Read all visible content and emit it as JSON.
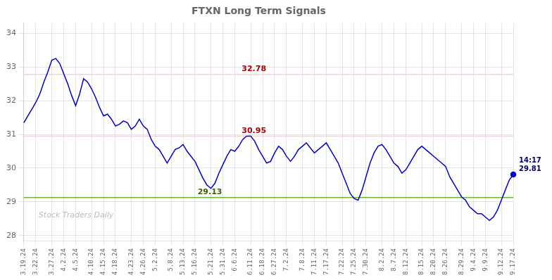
{
  "chart_data": {
    "type": "line",
    "title": "FTXN Long Term Signals",
    "color": "#0000cc",
    "grid": true,
    "ylim": [
      27.85,
      34.3
    ],
    "yticks": [
      28,
      29,
      30,
      31,
      32,
      33,
      34
    ],
    "categories": [
      "3.19.24",
      null,
      null,
      "3.22.24",
      null,
      null,
      null,
      "3.27.24",
      null,
      null,
      "4.2.24",
      null,
      null,
      "4.5.24",
      null,
      null,
      null,
      "4.10.24",
      null,
      null,
      "4.15.24",
      null,
      null,
      "4.18.24",
      null,
      null,
      null,
      "4.23.24",
      null,
      null,
      "4.26.24",
      null,
      null,
      "5.2.24",
      null,
      null,
      null,
      "5.8.24",
      null,
      null,
      "5.13.24",
      null,
      null,
      "5.16.24",
      null,
      null,
      null,
      "5.21.24",
      null,
      null,
      "5.31.24",
      null,
      null,
      "6.6.24",
      null,
      null,
      null,
      "6.11.24",
      null,
      null,
      "6.18.24",
      null,
      null,
      "6.27.24",
      null,
      null,
      "7.2.24",
      null,
      null,
      null,
      "7.8.24",
      null,
      null,
      "7.11.24",
      null,
      null,
      "7.17.24",
      null,
      null,
      null,
      "7.22.24",
      null,
      null,
      "7.25.24",
      null,
      null,
      "7.30.24",
      null,
      null,
      null,
      "8.2.24",
      null,
      null,
      "8.7.24",
      null,
      null,
      "8.12.24",
      null,
      null,
      null,
      "8.15.24",
      null,
      null,
      "8.20.24",
      null,
      null,
      "8.26.24",
      null,
      null,
      null,
      "8.29.24",
      null,
      null,
      "9.4.24",
      null,
      null,
      "9.9.24",
      null,
      null,
      null,
      "9.12.24",
      null,
      null,
      "9.17.24"
    ],
    "values": [
      31.35,
      31.55,
      31.75,
      31.95,
      32.2,
      32.55,
      32.85,
      33.2,
      33.25,
      33.1,
      32.8,
      32.5,
      32.15,
      31.85,
      32.2,
      32.65,
      32.55,
      32.35,
      32.1,
      31.8,
      31.55,
      31.6,
      31.45,
      31.25,
      31.3,
      31.4,
      31.35,
      31.15,
      31.25,
      31.45,
      31.25,
      31.15,
      30.85,
      30.65,
      30.55,
      30.35,
      30.15,
      30.35,
      30.55,
      30.6,
      30.7,
      30.5,
      30.35,
      30.2,
      29.95,
      29.7,
      29.5,
      29.4,
      29.55,
      29.85,
      30.1,
      30.35,
      30.55,
      30.5,
      30.65,
      30.85,
      30.95,
      30.95,
      30.8,
      30.55,
      30.35,
      30.15,
      30.2,
      30.45,
      30.65,
      30.55,
      30.35,
      30.2,
      30.35,
      30.55,
      30.65,
      30.75,
      30.6,
      30.45,
      30.55,
      30.65,
      30.75,
      30.55,
      30.35,
      30.15,
      29.85,
      29.55,
      29.25,
      29.1,
      29.05,
      29.35,
      29.75,
      30.15,
      30.45,
      30.65,
      30.7,
      30.55,
      30.35,
      30.15,
      30.05,
      29.85,
      29.95,
      30.15,
      30.35,
      30.55,
      30.65,
      30.55,
      30.45,
      30.35,
      30.25,
      30.15,
      30.05,
      29.75,
      29.55,
      29.35,
      29.15,
      29.05,
      28.85,
      28.75,
      28.65,
      28.65,
      28.55,
      28.45,
      28.55,
      28.75,
      29.05,
      29.35,
      29.65,
      29.81
    ],
    "hlines": [
      {
        "value": 32.78,
        "color": "#ffcccc",
        "label": "32.78",
        "label_color": "#aa0000"
      },
      {
        "value": 30.95,
        "color": "#ffcccc",
        "label": "30.95",
        "label_color": "#aa0000"
      },
      {
        "value": 29.13,
        "color": "#66bb33",
        "label": "29.13",
        "label_color": "#336600"
      }
    ],
    "last_point_annotation": {
      "text": "14:17\n29.81",
      "color": "#000066"
    },
    "watermark": "Stock Traders Daily"
  }
}
